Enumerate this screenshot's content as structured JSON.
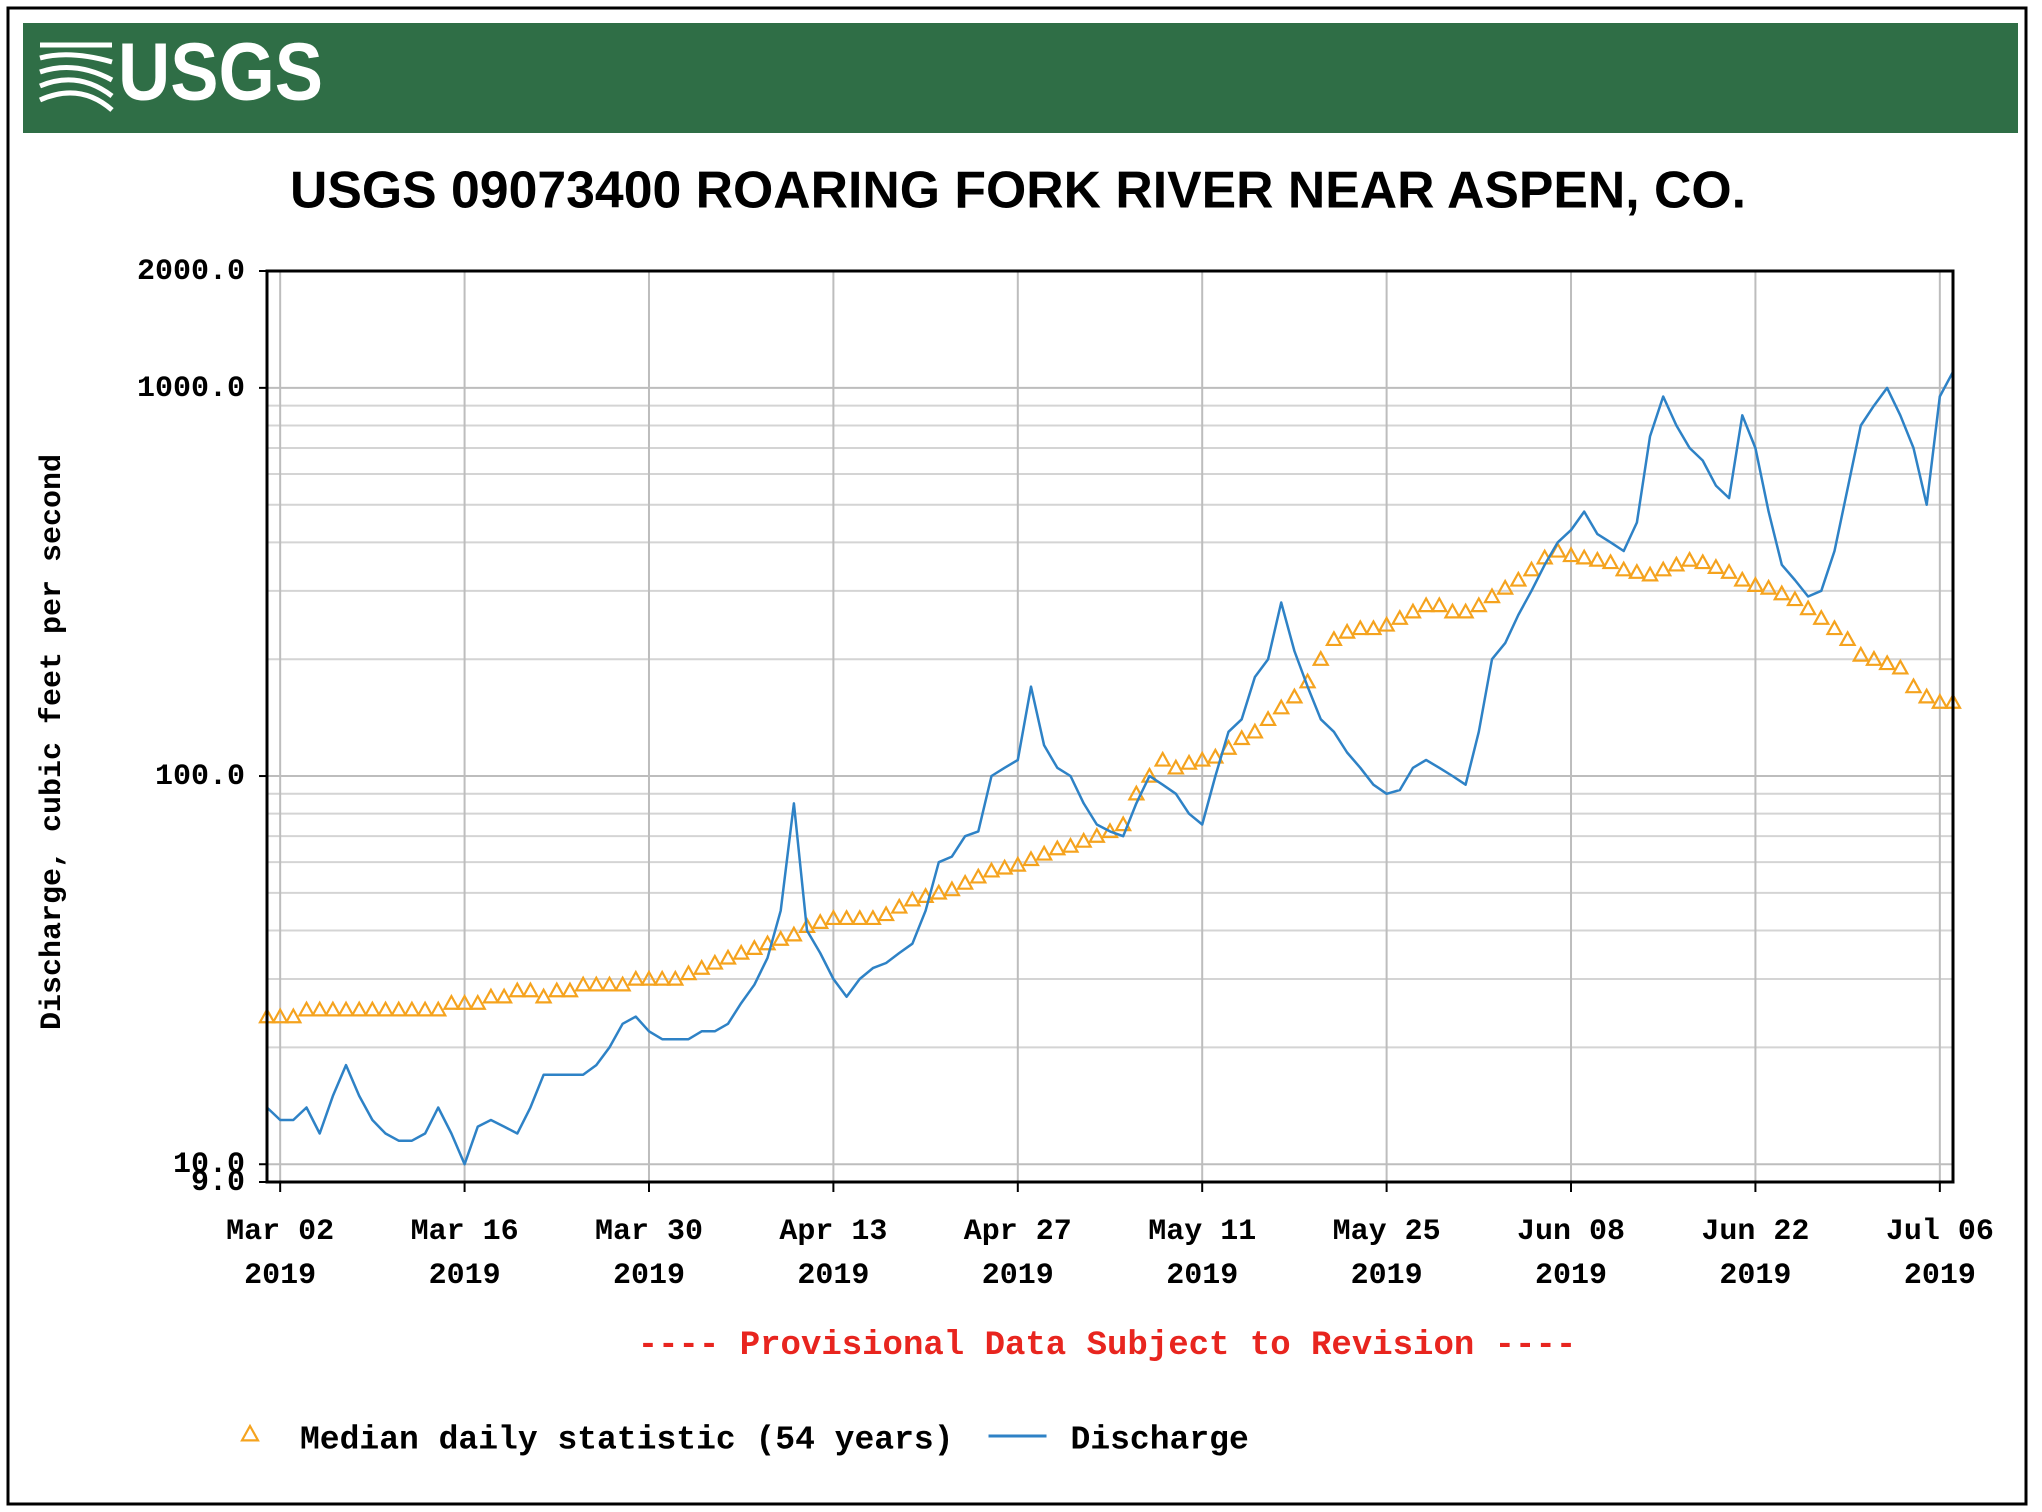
{
  "header": {
    "logo": "USGS"
  },
  "chart_data": {
    "type": "line",
    "title": "USGS 09073400 ROARING FORK RIVER NEAR ASPEN, CO.",
    "y_label": "Discharge, cubic feet per second",
    "note": "---- Provisional Data Subject to Revision ----",
    "log_scale": true,
    "grid": true,
    "minor_grid": true,
    "legend": "bottom",
    "xlim": [
      "2019-03-01",
      "2019-07-07"
    ],
    "xticks": [
      {
        "value": "2019-03-02",
        "label": "Mar 02\n2019"
      },
      {
        "value": "2019-03-16",
        "label": "Mar 16\n2019"
      },
      {
        "value": "2019-03-30",
        "label": "Mar 30\n2019"
      },
      {
        "value": "2019-04-13",
        "label": "Apr 13\n2019"
      },
      {
        "value": "2019-04-27",
        "label": "Apr 27\n2019"
      },
      {
        "value": "2019-05-11",
        "label": "May 11\n2019"
      },
      {
        "value": "2019-05-25",
        "label": "May 25\n2019"
      },
      {
        "value": "2019-06-08",
        "label": "Jun 08\n2019"
      },
      {
        "value": "2019-06-22",
        "label": "Jun 22\n2019"
      },
      {
        "value": "2019-07-06",
        "label": "Jul 06\n2019"
      }
    ],
    "ylim": [
      9,
      2000
    ],
    "yticks": [
      {
        "value": 9,
        "label": "9.0"
      },
      {
        "value": 10,
        "label": "10.0"
      },
      {
        "value": 100,
        "label": "100.0"
      },
      {
        "value": 1000,
        "label": "1000.0"
      },
      {
        "value": 2000,
        "label": "2000.0"
      }
    ],
    "x": [
      "2019-03-01",
      "2019-03-02",
      "2019-03-03",
      "2019-03-04",
      "2019-03-05",
      "2019-03-06",
      "2019-03-07",
      "2019-03-08",
      "2019-03-09",
      "2019-03-10",
      "2019-03-11",
      "2019-03-12",
      "2019-03-13",
      "2019-03-14",
      "2019-03-15",
      "2019-03-16",
      "2019-03-17",
      "2019-03-18",
      "2019-03-19",
      "2019-03-20",
      "2019-03-21",
      "2019-03-22",
      "2019-03-23",
      "2019-03-24",
      "2019-03-25",
      "2019-03-26",
      "2019-03-27",
      "2019-03-28",
      "2019-03-29",
      "2019-03-30",
      "2019-03-31",
      "2019-04-01",
      "2019-04-02",
      "2019-04-03",
      "2019-04-04",
      "2019-04-05",
      "2019-04-06",
      "2019-04-07",
      "2019-04-08",
      "2019-04-09",
      "2019-04-10",
      "2019-04-11",
      "2019-04-12",
      "2019-04-13",
      "2019-04-14",
      "2019-04-15",
      "2019-04-16",
      "2019-04-17",
      "2019-04-18",
      "2019-04-19",
      "2019-04-20",
      "2019-04-21",
      "2019-04-22",
      "2019-04-23",
      "2019-04-24",
      "2019-04-25",
      "2019-04-26",
      "2019-04-27",
      "2019-04-28",
      "2019-04-29",
      "2019-04-30",
      "2019-05-01",
      "2019-05-02",
      "2019-05-03",
      "2019-05-04",
      "2019-05-05",
      "2019-05-06",
      "2019-05-07",
      "2019-05-08",
      "2019-05-09",
      "2019-05-10",
      "2019-05-11",
      "2019-05-12",
      "2019-05-13",
      "2019-05-14",
      "2019-05-15",
      "2019-05-16",
      "2019-05-17",
      "2019-05-18",
      "2019-05-19",
      "2019-05-20",
      "2019-05-21",
      "2019-05-22",
      "2019-05-23",
      "2019-05-24",
      "2019-05-25",
      "2019-05-26",
      "2019-05-27",
      "2019-05-28",
      "2019-05-29",
      "2019-05-30",
      "2019-05-31",
      "2019-06-01",
      "2019-06-02",
      "2019-06-03",
      "2019-06-04",
      "2019-06-05",
      "2019-06-06",
      "2019-06-07",
      "2019-06-08",
      "2019-06-09",
      "2019-06-10",
      "2019-06-11",
      "2019-06-12",
      "2019-06-13",
      "2019-06-14",
      "2019-06-15",
      "2019-06-16",
      "2019-06-17",
      "2019-06-18",
      "2019-06-19",
      "2019-06-20",
      "2019-06-21",
      "2019-06-22",
      "2019-06-23",
      "2019-06-24",
      "2019-06-25",
      "2019-06-26",
      "2019-06-27",
      "2019-06-28",
      "2019-06-29",
      "2019-06-30",
      "2019-07-01",
      "2019-07-02",
      "2019-07-03",
      "2019-07-04",
      "2019-07-05",
      "2019-07-06",
      "2019-07-07"
    ],
    "series": [
      {
        "name": "Median daily statistic (54 years)",
        "color": "#f5a31e",
        "marker": "triangle",
        "values": [
          24,
          24,
          24,
          25,
          25,
          25,
          25,
          25,
          25,
          25,
          25,
          25,
          25,
          25,
          26,
          26,
          26,
          27,
          27,
          28,
          28,
          27,
          28,
          28,
          29,
          29,
          29,
          29,
          30,
          30,
          30,
          30,
          31,
          32,
          33,
          34,
          35,
          36,
          37,
          38,
          39,
          41,
          42,
          43,
          43,
          43,
          43,
          44,
          46,
          48,
          49,
          50,
          51,
          53,
          55,
          57,
          58,
          59,
          61,
          63,
          65,
          66,
          68,
          70,
          72,
          75,
          90,
          100,
          110,
          105,
          108,
          110,
          112,
          118,
          125,
          130,
          140,
          150,
          160,
          175,
          200,
          225,
          235,
          240,
          240,
          245,
          255,
          265,
          275,
          275,
          265,
          265,
          275,
          290,
          305,
          320,
          340,
          365,
          380,
          370,
          365,
          360,
          355,
          340,
          335,
          330,
          340,
          350,
          360,
          355,
          345,
          335,
          320,
          310,
          305,
          295,
          285,
          270,
          255,
          240,
          225,
          205,
          200,
          195,
          190,
          170,
          160,
          155,
          155
        ]
      },
      {
        "name": "Discharge",
        "color": "#2e82c6",
        "marker": "line",
        "values": [
          14,
          13,
          13,
          14,
          12,
          15,
          18,
          15,
          13,
          12,
          11.5,
          11.5,
          12,
          14,
          12,
          10,
          12.5,
          13,
          12.5,
          12,
          14,
          17,
          17,
          17,
          17,
          18,
          20,
          23,
          24,
          22,
          21,
          21,
          21,
          22,
          22,
          23,
          26,
          29,
          34,
          45,
          85,
          40,
          35,
          30,
          27,
          30,
          32,
          33,
          35,
          37,
          45,
          60,
          62,
          70,
          72,
          100,
          105,
          110,
          170,
          120,
          105,
          100,
          85,
          75,
          72,
          70,
          85,
          100,
          95,
          90,
          80,
          75,
          100,
          130,
          140,
          180,
          200,
          280,
          210,
          170,
          140,
          130,
          115,
          105,
          95,
          90,
          92,
          105,
          110,
          105,
          100,
          95,
          130,
          200,
          220,
          260,
          300,
          350,
          400,
          430,
          480,
          420,
          400,
          380,
          450,
          750,
          950,
          800,
          700,
          650,
          560,
          520,
          850,
          700,
          480,
          350,
          320,
          290,
          300,
          380,
          550,
          800,
          900,
          1000,
          850,
          700,
          500,
          950,
          1100
        ]
      }
    ]
  }
}
